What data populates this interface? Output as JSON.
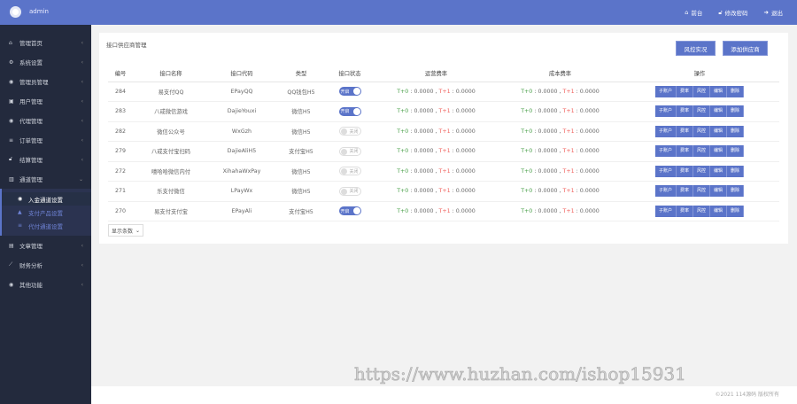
{
  "header": {
    "user": "admin",
    "links": [
      {
        "icon": "home-icon",
        "label": "前台"
      },
      {
        "icon": "lock-icon",
        "label": "修改密码"
      },
      {
        "icon": "logout-icon",
        "label": "退出"
      }
    ]
  },
  "sidebar": {
    "items": [
      {
        "icon": "home-icon",
        "label": "管理首页"
      },
      {
        "icon": "settings-icon",
        "label": "系统设置"
      },
      {
        "icon": "user-circle-icon",
        "label": "管理员管理"
      },
      {
        "icon": "users-icon",
        "label": "用户管理"
      },
      {
        "icon": "agent-icon",
        "label": "代理管理"
      },
      {
        "icon": "list-icon",
        "label": "订单管理"
      },
      {
        "icon": "lock-icon",
        "label": "结算管理"
      },
      {
        "icon": "bank-icon",
        "label": "通道管理",
        "expanded": true,
        "children": [
          {
            "label": "入金通道设置",
            "active": true
          },
          {
            "label": "支付产品设置"
          },
          {
            "label": "代付通道设置"
          }
        ]
      },
      {
        "icon": "article-icon",
        "label": "文章管理"
      },
      {
        "icon": "chart-icon",
        "label": "财务分析"
      },
      {
        "icon": "other-icon",
        "label": "其他功能"
      }
    ]
  },
  "page": {
    "title": "接口供应商管理",
    "buttons": [
      "风控实况",
      "添加供应商"
    ],
    "page_size_label": "显示条数"
  },
  "table": {
    "headers": [
      "编号",
      "接口名称",
      "接口代码",
      "类型",
      "接口状态",
      "运营费率",
      "成本费率",
      "操作"
    ],
    "rows": [
      {
        "id": "284",
        "name": "易支付QQ",
        "code": "EPayQQ",
        "type": "QQ钱包H5",
        "status": "开启",
        "on": true
      },
      {
        "id": "283",
        "name": "八戒微信游戏",
        "code": "DajieYouxi",
        "type": "微信H5",
        "status": "开启",
        "on": true
      },
      {
        "id": "282",
        "name": "微信公众号",
        "code": "WxGzh",
        "type": "微信H5",
        "status": "关闭",
        "on": false
      },
      {
        "id": "279",
        "name": "八戒支付宝扫码",
        "code": "DajieAliH5",
        "type": "支付宝H5",
        "status": "关闭",
        "on": false
      },
      {
        "id": "272",
        "name": "嘻哈哈微信内付",
        "code": "XihahaWxPay",
        "type": "微信H5",
        "status": "关闭",
        "on": false
      },
      {
        "id": "271",
        "name": "乐支付微信",
        "code": "LPayWx",
        "type": "微信H5",
        "status": "关闭",
        "on": false
      },
      {
        "id": "270",
        "name": "易支付支付宝",
        "code": "EPayAli",
        "type": "支付宝H5",
        "status": "开启",
        "on": true
      }
    ],
    "rate": {
      "t0": "T+0",
      "t0v": " : 0.0000 , ",
      "t1": "T+1",
      "t1v": " : 0.0000"
    },
    "ops": [
      "子账户",
      "费率",
      "风控",
      "编辑",
      "删除"
    ]
  },
  "watermark": "https://www.huzhan.com/ishop15931",
  "footer": "©2021 114源码 版权所有",
  "colors": {
    "accent": "#5b74c9",
    "sidebar": "#232a3d",
    "green": "#4aa04a",
    "red": "#f0605c"
  }
}
